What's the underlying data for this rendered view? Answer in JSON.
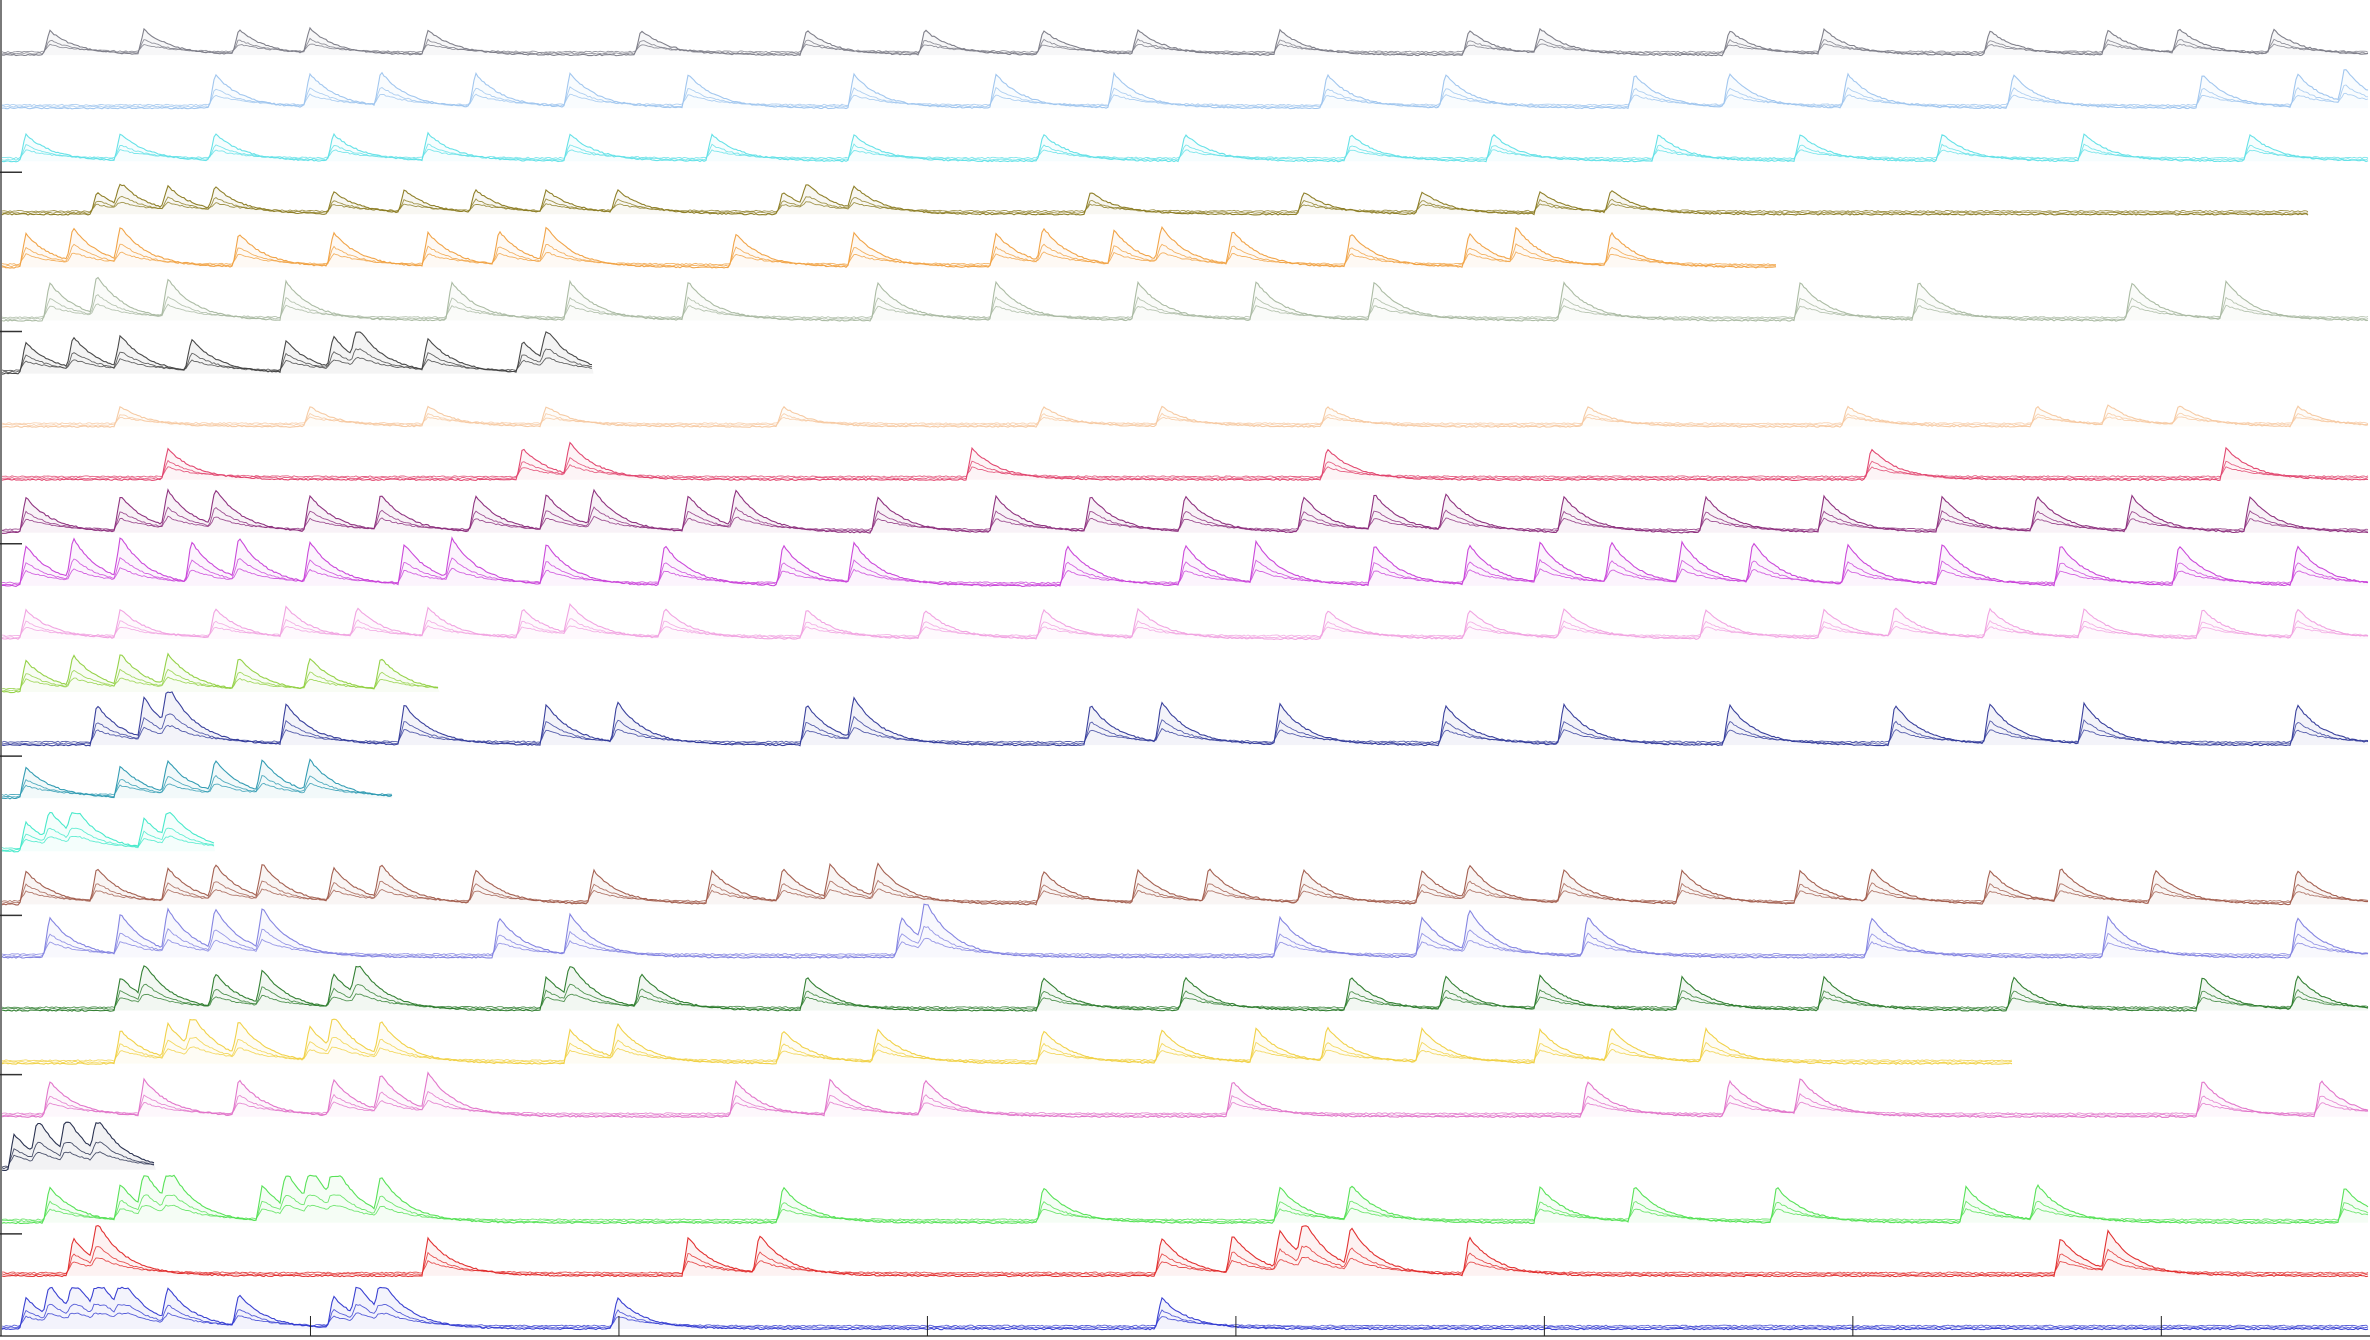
{
  "chart_data": {
    "type": "line",
    "title": "",
    "xlabel": "",
    "ylabel": "",
    "grid": false,
    "legend": "none",
    "x_range": [
      0,
      1
    ],
    "x_ticks": 8,
    "scale_bar_rows": [
      3,
      6,
      10,
      14,
      17,
      20,
      23
    ],
    "series": [
      {
        "color": "#7b7b86",
        "extent": 1.0,
        "spikes": [
          0.02,
          0.06,
          0.1,
          0.13,
          0.18,
          0.27,
          0.34,
          0.39,
          0.44,
          0.48,
          0.54,
          0.62,
          0.65,
          0.73,
          0.77,
          0.84,
          0.89,
          0.92,
          0.96
        ],
        "amp": 0.55
      },
      {
        "color": "#9ec4ee",
        "extent": 1.0,
        "spikes": [
          0.09,
          0.13,
          0.16,
          0.2,
          0.24,
          0.29,
          0.36,
          0.42,
          0.47,
          0.56,
          0.61,
          0.69,
          0.73,
          0.78,
          0.85,
          0.93,
          0.97,
          0.99
        ],
        "amp": 0.75
      },
      {
        "color": "#5fe0e6",
        "extent": 1.0,
        "spikes": [
          0.01,
          0.05,
          0.09,
          0.14,
          0.18,
          0.24,
          0.3,
          0.36,
          0.44,
          0.5,
          0.57,
          0.63,
          0.7,
          0.76,
          0.82,
          0.88,
          0.95
        ],
        "amp": 0.6
      },
      {
        "color": "#8a7a20",
        "extent": 0.975,
        "spikes": [
          0.04,
          0.05,
          0.07,
          0.09,
          0.14,
          0.17,
          0.2,
          0.23,
          0.26,
          0.33,
          0.34,
          0.36,
          0.46,
          0.55,
          0.6,
          0.65,
          0.68
        ],
        "amp": 0.5
      },
      {
        "color": "#f0a040",
        "extent": 0.75,
        "spikes": [
          0.01,
          0.03,
          0.05,
          0.1,
          0.14,
          0.18,
          0.21,
          0.23,
          0.31,
          0.36,
          0.42,
          0.44,
          0.47,
          0.49,
          0.52,
          0.57,
          0.62,
          0.64,
          0.68
        ],
        "amp": 0.75
      },
      {
        "color": "#a8b8a0",
        "extent": 1.0,
        "spikes": [
          0.02,
          0.04,
          0.07,
          0.12,
          0.19,
          0.24,
          0.29,
          0.37,
          0.42,
          0.48,
          0.53,
          0.58,
          0.66,
          0.76,
          0.81,
          0.9,
          0.94
        ],
        "amp": 0.85
      },
      {
        "color": "#404040",
        "extent": 0.25,
        "spikes": [
          0.01,
          0.03,
          0.05,
          0.08,
          0.12,
          0.14,
          0.15,
          0.18,
          0.22,
          0.23
        ],
        "amp": 0.7
      },
      {
        "color": "#f6c8a0",
        "extent": 1.0,
        "spikes": [
          0.05,
          0.13,
          0.18,
          0.23,
          0.33,
          0.44,
          0.49,
          0.56,
          0.67,
          0.78,
          0.86,
          0.89,
          0.92,
          0.97
        ],
        "amp": 0.45
      },
      {
        "color": "#e0406a",
        "extent": 1.0,
        "spikes": [
          0.07,
          0.22,
          0.24,
          0.41,
          0.56,
          0.79,
          0.94
        ],
        "amp": 0.7
      },
      {
        "color": "#8a2a7a",
        "extent": 1.0,
        "spikes": [
          0.01,
          0.05,
          0.07,
          0.09,
          0.13,
          0.16,
          0.2,
          0.23,
          0.25,
          0.29,
          0.31,
          0.37,
          0.42,
          0.46,
          0.5,
          0.55,
          0.58,
          0.61,
          0.66,
          0.72,
          0.77,
          0.82,
          0.86,
          0.9,
          0.95
        ],
        "amp": 0.8
      },
      {
        "color": "#c840d8",
        "extent": 1.0,
        "spikes": [
          0.01,
          0.03,
          0.05,
          0.08,
          0.1,
          0.13,
          0.17,
          0.19,
          0.23,
          0.28,
          0.33,
          0.36,
          0.45,
          0.5,
          0.53,
          0.58,
          0.62,
          0.65,
          0.68,
          0.71,
          0.74,
          0.78,
          0.82,
          0.87,
          0.92,
          0.97
        ],
        "amp": 0.9
      },
      {
        "color": "#f0a0e0",
        "extent": 1.0,
        "spikes": [
          0.01,
          0.05,
          0.09,
          0.12,
          0.15,
          0.18,
          0.22,
          0.24,
          0.28,
          0.34,
          0.39,
          0.44,
          0.48,
          0.56,
          0.62,
          0.66,
          0.72,
          0.77,
          0.8,
          0.84,
          0.88,
          0.93,
          0.97
        ],
        "amp": 0.65
      },
      {
        "color": "#90d040",
        "extent": 0.185,
        "spikes": [
          0.01,
          0.03,
          0.05,
          0.07,
          0.1,
          0.13,
          0.16
        ],
        "amp": 0.7
      },
      {
        "color": "#303898",
        "extent": 1.0,
        "spikes": [
          0.04,
          0.06,
          0.07,
          0.12,
          0.17,
          0.23,
          0.26,
          0.34,
          0.36,
          0.46,
          0.49,
          0.54,
          0.61,
          0.66,
          0.73,
          0.8,
          0.84,
          0.88,
          0.97
        ],
        "amp": 0.9
      },
      {
        "color": "#2a98b0",
        "extent": 0.165,
        "spikes": [
          0.01,
          0.05,
          0.07,
          0.09,
          0.11,
          0.13
        ],
        "amp": 0.7
      },
      {
        "color": "#40e8c8",
        "extent": 0.09,
        "spikes": [
          0.01,
          0.02,
          0.03,
          0.06,
          0.07
        ],
        "amp": 0.65
      },
      {
        "color": "#a05a4a",
        "extent": 1.0,
        "spikes": [
          0.01,
          0.04,
          0.07,
          0.09,
          0.11,
          0.14,
          0.16,
          0.2,
          0.25,
          0.3,
          0.33,
          0.35,
          0.37,
          0.44,
          0.48,
          0.51,
          0.55,
          0.6,
          0.62,
          0.66,
          0.71,
          0.76,
          0.79,
          0.84,
          0.87,
          0.91,
          0.97
        ],
        "amp": 0.75
      },
      {
        "color": "#8080e0",
        "extent": 1.0,
        "spikes": [
          0.02,
          0.05,
          0.07,
          0.09,
          0.11,
          0.21,
          0.24,
          0.38,
          0.39,
          0.54,
          0.6,
          0.62,
          0.67,
          0.79,
          0.89,
          0.97
        ],
        "amp": 0.9
      },
      {
        "color": "#2a7a2a",
        "extent": 1.0,
        "spikes": [
          0.05,
          0.06,
          0.09,
          0.11,
          0.14,
          0.15,
          0.23,
          0.24,
          0.27,
          0.34,
          0.44,
          0.5,
          0.57,
          0.61,
          0.65,
          0.71,
          0.77,
          0.85,
          0.93,
          0.97
        ],
        "amp": 0.75
      },
      {
        "color": "#f0d040",
        "extent": 0.85,
        "spikes": [
          0.05,
          0.07,
          0.08,
          0.1,
          0.13,
          0.14,
          0.16,
          0.24,
          0.26,
          0.33,
          0.37,
          0.44,
          0.49,
          0.53,
          0.56,
          0.6,
          0.65,
          0.68,
          0.72
        ],
        "amp": 0.75
      },
      {
        "color": "#e070c8",
        "extent": 1.0,
        "spikes": [
          0.02,
          0.06,
          0.1,
          0.14,
          0.16,
          0.18,
          0.31,
          0.35,
          0.39,
          0.52,
          0.67,
          0.73,
          0.76,
          0.93,
          0.98
        ],
        "amp": 0.8
      },
      {
        "color": "#202848",
        "extent": 0.065,
        "spikes": [
          0.005,
          0.015,
          0.027,
          0.04
        ],
        "amp": 0.8
      },
      {
        "color": "#50e050",
        "extent": 1.0,
        "spikes": [
          0.02,
          0.05,
          0.06,
          0.07,
          0.11,
          0.12,
          0.13,
          0.14,
          0.16,
          0.33,
          0.44,
          0.54,
          0.57,
          0.65,
          0.69,
          0.75,
          0.83,
          0.86,
          0.99
        ],
        "amp": 0.8
      },
      {
        "color": "#e02828",
        "extent": 1.0,
        "spikes": [
          0.03,
          0.04,
          0.18,
          0.29,
          0.32,
          0.49,
          0.52,
          0.54,
          0.55,
          0.57,
          0.62,
          0.87,
          0.89
        ],
        "amp": 0.85
      },
      {
        "color": "#3038d0",
        "extent": 1.0,
        "spikes": [
          0.01,
          0.02,
          0.03,
          0.04,
          0.05,
          0.07,
          0.1,
          0.14,
          0.15,
          0.16,
          0.26,
          0.49
        ],
        "amp": 0.7
      }
    ]
  }
}
